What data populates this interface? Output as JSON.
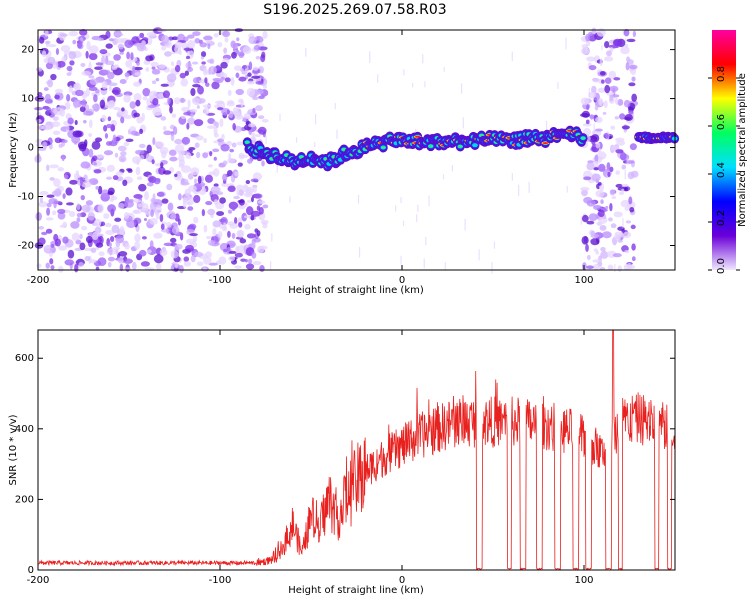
{
  "title": "S196.2025.269.07.58.R03",
  "chart_data": [
    {
      "type": "heatmap",
      "id": "spectrogram",
      "xlabel": "Height of straight line (km)",
      "ylabel": "Frequency (Hz)",
      "xlim": [
        -200,
        150
      ],
      "ylim": [
        -25,
        24
      ],
      "x_ticks": [
        "-200",
        "-100",
        "0",
        "100"
      ],
      "x_tick_values": [
        -200,
        -100,
        0,
        100
      ],
      "y_ticks": [
        "20",
        "10",
        "0",
        "-10",
        "-20"
      ],
      "y_tick_values": [
        20,
        10,
        0,
        -10,
        -20
      ],
      "colorbar": {
        "label": "Normalized spectral amplitude",
        "range": [
          0,
          1
        ],
        "ticks": [
          "0.8",
          "0.6",
          "0.4",
          "0.2",
          "0.0"
        ],
        "tick_values": [
          0.8,
          0.6,
          0.4,
          0.2,
          0.0
        ],
        "colors": [
          "#f0e8ff",
          "#6a00d8",
          "#0000ff",
          "#00e0ff",
          "#00ff60",
          "#ffff00",
          "#ff0000",
          "#ff00a0"
        ]
      },
      "signal_track": {
        "x": [
          -85,
          -75,
          -60,
          -50,
          -40,
          -30,
          -20,
          -10,
          0,
          20,
          40,
          60,
          80,
          95,
          100
        ],
        "freq": [
          0,
          -1,
          -3,
          -2,
          -3,
          -1,
          0,
          1,
          1.5,
          1,
          1.5,
          1.5,
          2,
          2.5,
          1.5
        ]
      },
      "noise_regions": [
        [
          -200,
          -75
        ],
        [
          100,
          128
        ]
      ],
      "segment_after_gap": {
        "x": [
          130,
          150
        ],
        "freq": 2
      }
    },
    {
      "type": "line",
      "id": "snr",
      "xlabel": "Height of straight line (km)",
      "ylabel": "SNR (10 * v/v)",
      "xlim": [
        -200,
        150
      ],
      "ylim": [
        0,
        680
      ],
      "x_ticks": [
        "-200",
        "-100",
        "0",
        "100"
      ],
      "x_tick_values": [
        -200,
        -100,
        0,
        100
      ],
      "y_ticks": [
        "600",
        "400",
        "200",
        "0"
      ],
      "y_tick_values": [
        600,
        400,
        200,
        0
      ],
      "color": "#e8201e",
      "envelope": {
        "x": [
          -200,
          -80,
          -70,
          -65,
          -60,
          -55,
          -50,
          -45,
          -40,
          -35,
          -30,
          -20,
          -10,
          0,
          10,
          20,
          30,
          40,
          60,
          80,
          100,
          110,
          120,
          130,
          150
        ],
        "y": [
          20,
          20,
          30,
          70,
          130,
          50,
          150,
          130,
          200,
          150,
          210,
          280,
          320,
          350,
          380,
          400,
          420,
          420,
          420,
          410,
          380,
          330,
          420,
          430,
          400
        ]
      },
      "dropouts": [
        [
          41,
          44
        ],
        [
          58,
          60
        ],
        [
          65,
          68
        ],
        [
          74,
          77
        ],
        [
          84,
          87
        ],
        [
          94,
          97
        ],
        [
          101,
          104
        ],
        [
          112,
          115
        ],
        [
          119,
          121
        ],
        [
          139,
          141
        ],
        [
          146,
          148
        ]
      ],
      "peak": {
        "x": 116,
        "y": 680
      }
    }
  ]
}
